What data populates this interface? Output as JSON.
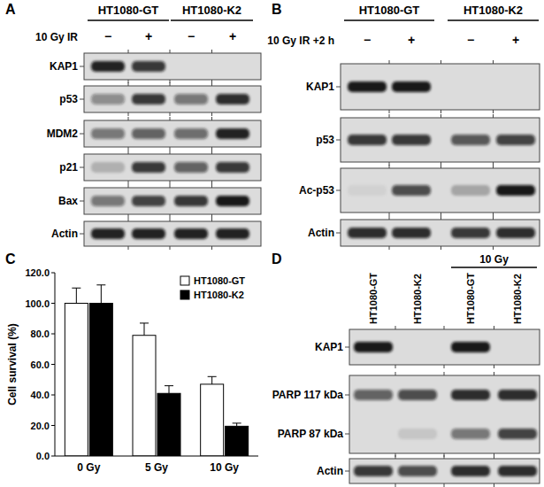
{
  "blots": [
    {
      "panel": "A",
      "groups": [
        "HT1080-GT",
        "HT1080-K2"
      ],
      "treatment_label": "10 Gy IR",
      "treatment": [
        "−",
        "+",
        "−",
        "+"
      ],
      "boxes": [
        [
          {
            "label": "KAP1",
            "intensity": [
              0.9,
              0.8,
              0,
              0
            ]
          }
        ],
        [
          {
            "label": "p53",
            "intensity": [
              0.4,
              0.8,
              0.5,
              0.85
            ]
          }
        ],
        [
          {
            "label": "MDM2",
            "intensity": [
              0.5,
              0.6,
              0.55,
              0.9
            ]
          }
        ],
        [
          {
            "label": "p21",
            "intensity": [
              0.2,
              0.8,
              0.6,
              0.8
            ]
          }
        ],
        [
          {
            "label": "Bax",
            "intensity": [
              0.5,
              0.75,
              0.8,
              0.95
            ]
          }
        ],
        [
          {
            "label": "Actin",
            "intensity": [
              0.9,
              0.9,
              0.9,
              0.9
            ]
          }
        ]
      ]
    },
    {
      "panel": "B",
      "groups": [
        "HT1080-GT",
        "HT1080-K2"
      ],
      "treatment_label": "10 Gy IR +2 h",
      "treatment": [
        "−",
        "+",
        "−",
        "+"
      ],
      "boxes": [
        [
          {
            "label": "KAP1",
            "intensity": [
              0.95,
              0.95,
              0,
              0
            ]
          }
        ],
        [
          {
            "label": "p53",
            "intensity": [
              0.8,
              0.8,
              0.65,
              0.75
            ]
          }
        ],
        [
          {
            "label": "Ac-p53",
            "intensity": [
              0.05,
              0.7,
              0.25,
              0.95
            ]
          }
        ],
        [
          {
            "label": "Actin",
            "intensity": [
              0.85,
              0.85,
              0.8,
              0.85
            ]
          }
        ]
      ]
    },
    {
      "panel": "D",
      "column_labels": [
        "HT1080-GT",
        "HT1080-K2",
        "HT1080-GT",
        "HT1080-K2"
      ],
      "span_label": "10 Gy",
      "boxes": [
        [
          {
            "label": "KAP1",
            "intensity": [
              0.95,
              0,
              0.95,
              0
            ]
          }
        ],
        [
          {
            "label": "PARP 117 kDa",
            "intensity": [
              0.6,
              0.7,
              0.85,
              0.85
            ]
          },
          {
            "label": "PARP 87 kDa",
            "intensity": [
              0,
              0.1,
              0.5,
              0.75
            ]
          }
        ],
        [
          {
            "label": "Actin",
            "intensity": [
              0.8,
              0.7,
              0.85,
              0.85
            ]
          }
        ]
      ]
    }
  ],
  "chart_data": {
    "type": "bar",
    "title": "C",
    "y_label": "Cell survival (%)",
    "categories": [
      "0 Gy",
      "5 Gy",
      "10 Gy"
    ],
    "series": [
      {
        "name": "HT1080-GT",
        "color": "#ffffff",
        "values": [
          100,
          79,
          47
        ],
        "errors": [
          10,
          8,
          5
        ]
      },
      {
        "name": "HT1080-K2",
        "color": "#000000",
        "values": [
          100,
          41,
          19.5
        ],
        "errors": [
          12,
          5,
          2
        ]
      }
    ],
    "ylim": [
      0,
      120
    ],
    "yticks": [
      {
        "value": 0,
        "label": "0.0"
      },
      {
        "value": 20,
        "label": "20.0"
      },
      {
        "value": 40,
        "label": "40.0"
      },
      {
        "value": 60,
        "label": "60.0"
      },
      {
        "value": 80,
        "label": "80.0"
      },
      {
        "value": 100,
        "label": "100.0"
      },
      {
        "value": 120,
        "label": "120.0"
      }
    ],
    "legend": "upper-right",
    "grid": false
  }
}
